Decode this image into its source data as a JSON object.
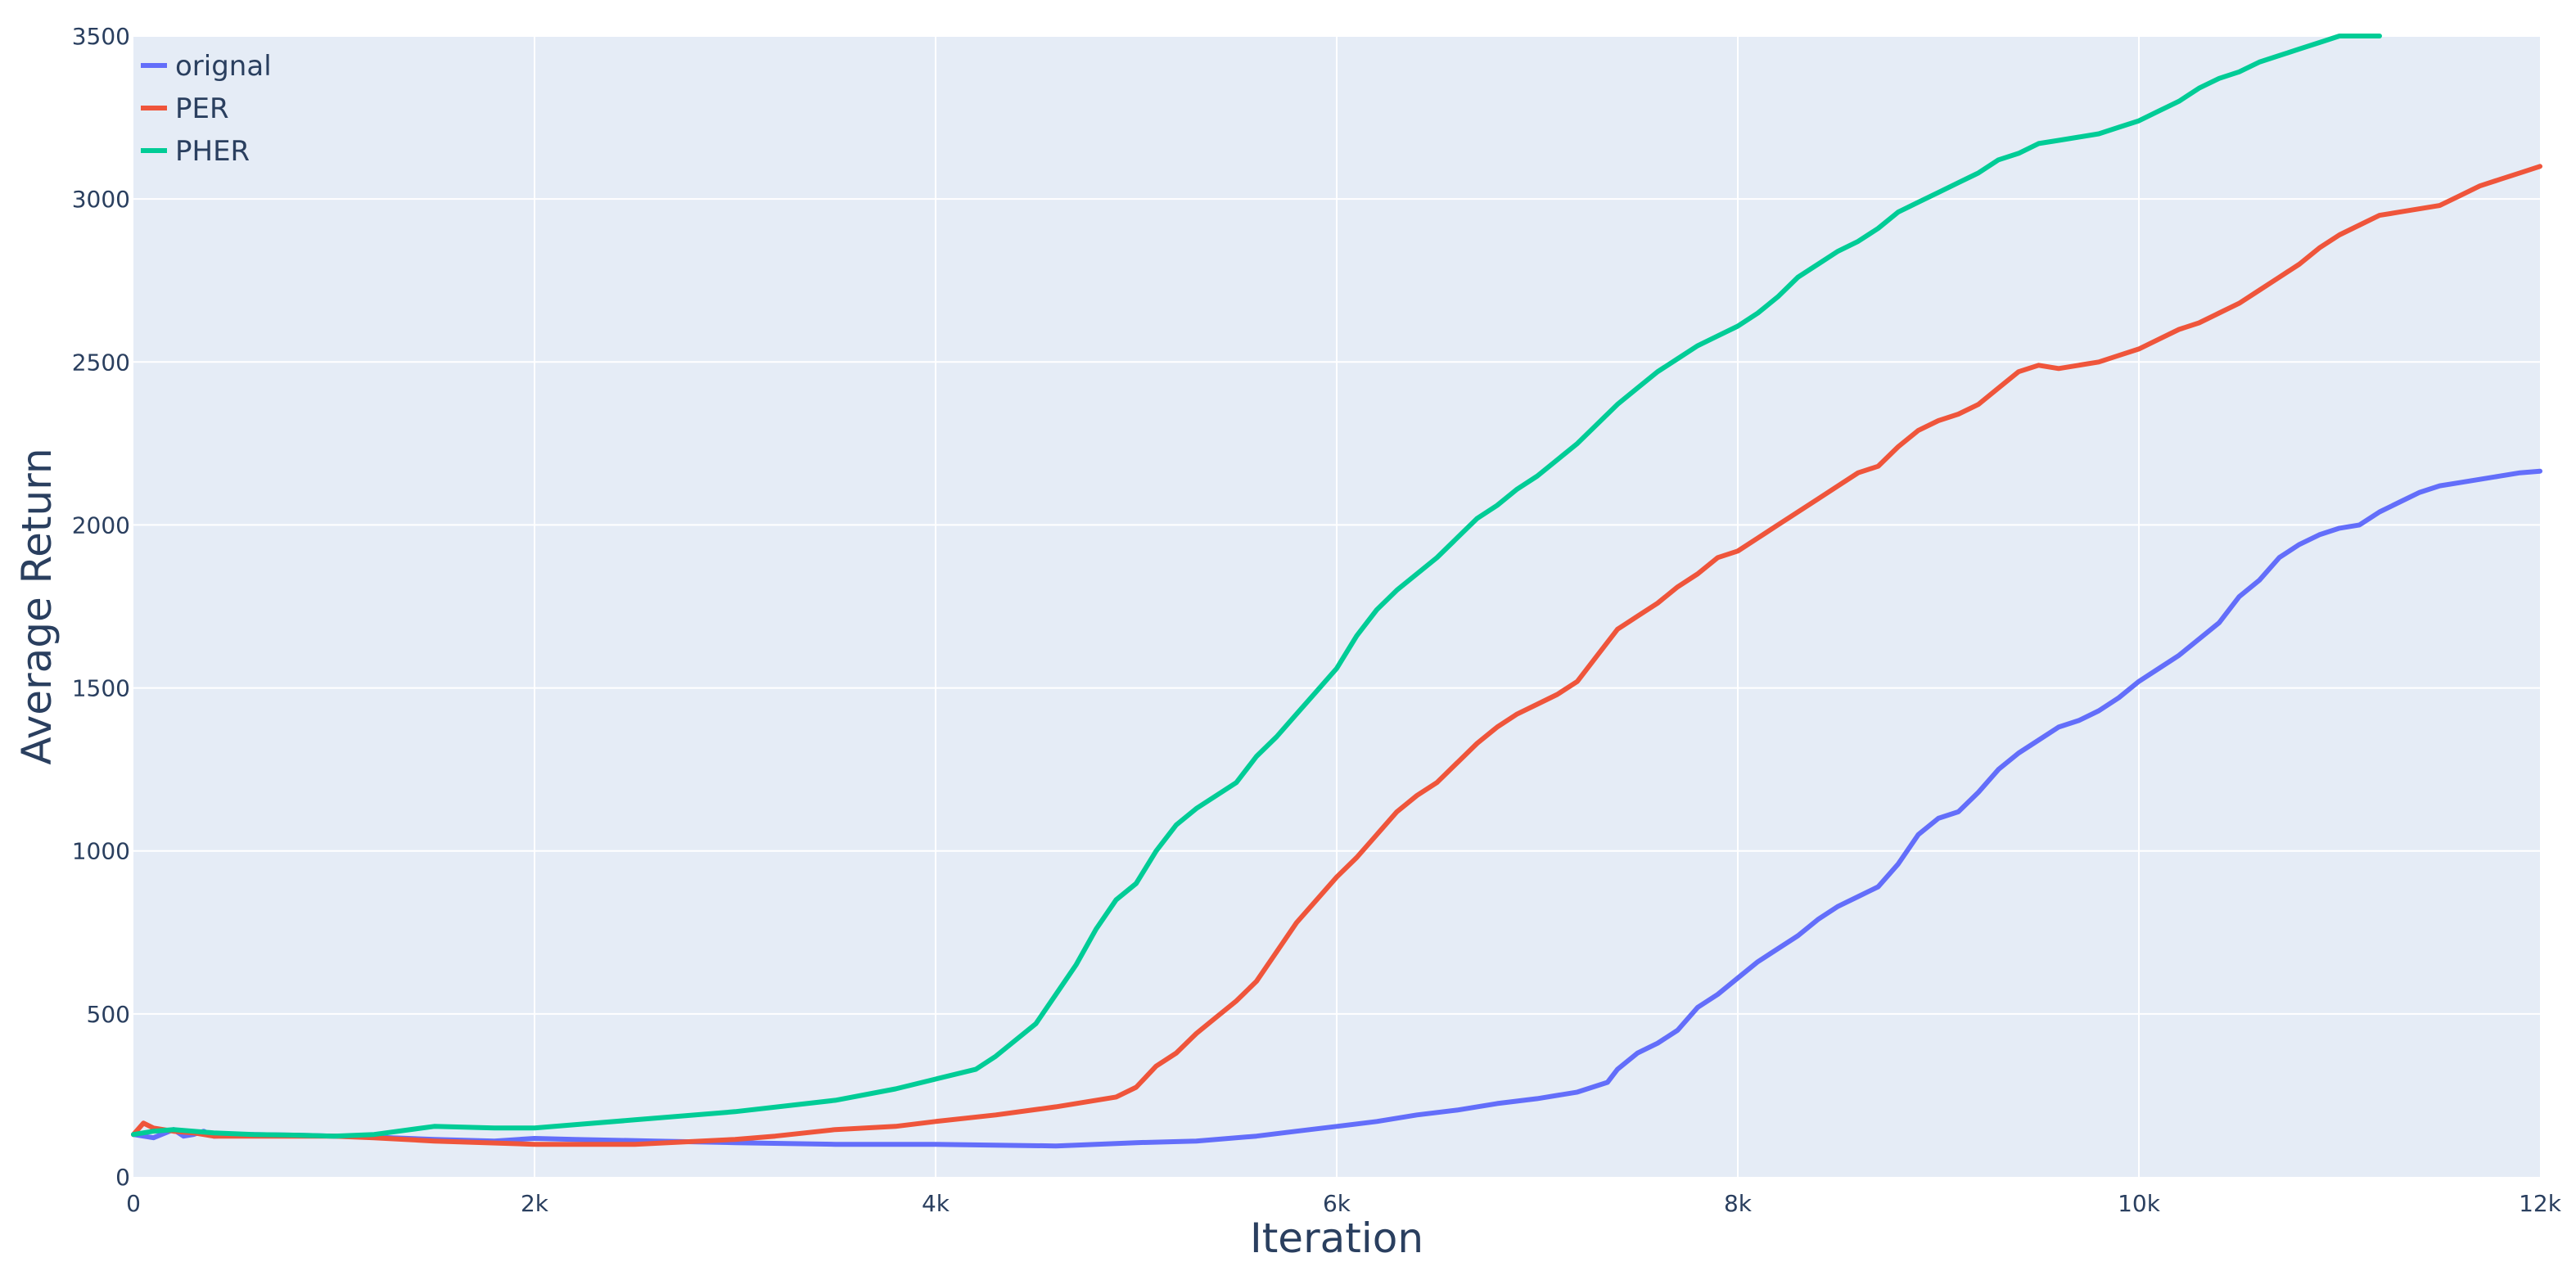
{
  "chart_data": {
    "type": "line",
    "xlabel": "Iteration",
    "ylabel": "Average Return",
    "xlim": [
      0,
      12000
    ],
    "ylim": [
      0,
      3500
    ],
    "grid": true,
    "legend_position": "top-left",
    "colors": {
      "plot_bg": "#e5ecf6",
      "grid": "#ffffff",
      "text": "#2a3f5f"
    },
    "x_ticks": [
      {
        "value": 0,
        "label": "0"
      },
      {
        "value": 2000,
        "label": "2k"
      },
      {
        "value": 4000,
        "label": "4k"
      },
      {
        "value": 6000,
        "label": "6k"
      },
      {
        "value": 8000,
        "label": "8k"
      },
      {
        "value": 10000,
        "label": "10k"
      },
      {
        "value": 12000,
        "label": "12k"
      }
    ],
    "y_ticks": [
      {
        "value": 0,
        "label": "0"
      },
      {
        "value": 500,
        "label": "500"
      },
      {
        "value": 1000,
        "label": "1000"
      },
      {
        "value": 1500,
        "label": "1500"
      },
      {
        "value": 2000,
        "label": "2000"
      },
      {
        "value": 2500,
        "label": "2500"
      },
      {
        "value": 3000,
        "label": "3000"
      },
      {
        "value": 3500,
        "label": "3500"
      }
    ],
    "series": [
      {
        "name": "orignal",
        "color": "#636efa",
        "x": [
          0,
          100,
          200,
          250,
          300,
          350,
          400,
          600,
          800,
          1000,
          1200,
          1500,
          1800,
          2000,
          2200,
          2600,
          3000,
          3500,
          4000,
          4600,
          5000,
          5300,
          5600,
          5800,
          6000,
          6200,
          6400,
          6600,
          6800,
          7000,
          7200,
          7350,
          7400,
          7500,
          7600,
          7700,
          7800,
          7900,
          8000,
          8100,
          8200,
          8300,
          8400,
          8500,
          8600,
          8700,
          8800,
          8900,
          9000,
          9100,
          9200,
          9300,
          9400,
          9500,
          9600,
          9700,
          9800,
          9900,
          10000,
          10100,
          10200,
          10300,
          10400,
          10500,
          10600,
          10700,
          10800,
          10900,
          11000,
          11100,
          11200,
          11300,
          11400,
          11500,
          11600,
          11700,
          11800,
          11900,
          12000
        ],
        "values": [
          130,
          120,
          145,
          125,
          130,
          140,
          125,
          130,
          128,
          125,
          122,
          115,
          110,
          118,
          115,
          110,
          105,
          100,
          100,
          95,
          105,
          110,
          125,
          140,
          155,
          170,
          190,
          205,
          225,
          240,
          260,
          290,
          330,
          380,
          410,
          450,
          520,
          560,
          610,
          660,
          700,
          740,
          790,
          830,
          860,
          890,
          960,
          1050,
          1100,
          1120,
          1180,
          1250,
          1300,
          1340,
          1380,
          1400,
          1430,
          1470,
          1520,
          1560,
          1600,
          1650,
          1700,
          1780,
          1830,
          1900,
          1940,
          1970,
          1990,
          2000,
          2040,
          2070,
          2100,
          2120,
          2130,
          2140,
          2150,
          2160,
          2165
        ]
      },
      {
        "name": "PER",
        "color": "#ef553b",
        "x": [
          0,
          50,
          100,
          200,
          300,
          400,
          600,
          800,
          1000,
          1200,
          1500,
          2000,
          2500,
          3000,
          3200,
          3500,
          3800,
          4000,
          4300,
          4600,
          4800,
          4900,
          5000,
          5100,
          5200,
          5300,
          5400,
          5500,
          5600,
          5700,
          5800,
          5900,
          6000,
          6100,
          6200,
          6300,
          6400,
          6500,
          6600,
          6700,
          6800,
          6900,
          7000,
          7100,
          7200,
          7300,
          7400,
          7500,
          7600,
          7700,
          7800,
          7900,
          8000,
          8100,
          8200,
          8300,
          8400,
          8500,
          8600,
          8700,
          8800,
          8900,
          9000,
          9100,
          9200,
          9300,
          9400,
          9500,
          9600,
          9700,
          9800,
          9900,
          10000,
          10100,
          10200,
          10300,
          10400,
          10500,
          10600,
          10700,
          10800,
          10900,
          11000,
          11100,
          11200,
          11300,
          11400,
          11500,
          11600,
          11700,
          11800,
          11900,
          12000
        ],
        "values": [
          130,
          165,
          150,
          140,
          135,
          125,
          125,
          125,
          125,
          120,
          110,
          100,
          100,
          115,
          125,
          145,
          155,
          170,
          190,
          215,
          235,
          245,
          275,
          340,
          380,
          440,
          490,
          540,
          600,
          690,
          780,
          850,
          920,
          980,
          1050,
          1120,
          1170,
          1210,
          1270,
          1330,
          1380,
          1420,
          1450,
          1480,
          1520,
          1600,
          1680,
          1720,
          1760,
          1810,
          1850,
          1900,
          1920,
          1960,
          2000,
          2040,
          2080,
          2120,
          2160,
          2180,
          2240,
          2290,
          2320,
          2340,
          2370,
          2420,
          2470,
          2490,
          2480,
          2490,
          2500,
          2520,
          2540,
          2570,
          2600,
          2620,
          2650,
          2680,
          2720,
          2760,
          2800,
          2850,
          2890,
          2920,
          2950,
          2960,
          2970,
          2980,
          3010,
          3040,
          3060,
          3080,
          3100
        ]
      },
      {
        "name": "PHER",
        "color": "#00cc96",
        "x": [
          0,
          100,
          200,
          300,
          400,
          600,
          800,
          1000,
          1200,
          1500,
          1800,
          2000,
          2200,
          2500,
          3000,
          3500,
          3800,
          4000,
          4200,
          4300,
          4400,
          4500,
          4600,
          4700,
          4800,
          4900,
          5000,
          5100,
          5200,
          5300,
          5400,
          5500,
          5600,
          5700,
          5800,
          5900,
          6000,
          6100,
          6200,
          6300,
          6400,
          6500,
          6600,
          6700,
          6800,
          6900,
          7000,
          7100,
          7200,
          7300,
          7400,
          7500,
          7600,
          7700,
          7800,
          7900,
          8000,
          8100,
          8200,
          8300,
          8400,
          8500,
          8600,
          8700,
          8800,
          8900,
          9000,
          9100,
          9200,
          9300,
          9400,
          9500,
          9600,
          9700,
          9800,
          9900,
          10000,
          10100,
          10200,
          10300,
          10400,
          10500,
          10600,
          10700,
          10800,
          10900,
          11000,
          11100,
          11200
        ],
        "values": [
          130,
          140,
          145,
          140,
          135,
          130,
          128,
          125,
          130,
          155,
          150,
          150,
          160,
          175,
          200,
          235,
          270,
          300,
          330,
          370,
          420,
          470,
          560,
          650,
          760,
          850,
          900,
          1000,
          1080,
          1130,
          1170,
          1210,
          1290,
          1350,
          1420,
          1490,
          1560,
          1660,
          1740,
          1800,
          1850,
          1900,
          1960,
          2020,
          2060,
          2110,
          2150,
          2200,
          2250,
          2310,
          2370,
          2420,
          2470,
          2510,
          2550,
          2580,
          2610,
          2650,
          2700,
          2760,
          2800,
          2840,
          2870,
          2910,
          2960,
          2990,
          3020,
          3050,
          3080,
          3120,
          3140,
          3170,
          3180,
          3190,
          3200,
          3220,
          3240,
          3270,
          3300,
          3340,
          3370,
          3390,
          3420,
          3440,
          3460,
          3480,
          3500,
          3510,
          3520
        ]
      }
    ]
  }
}
